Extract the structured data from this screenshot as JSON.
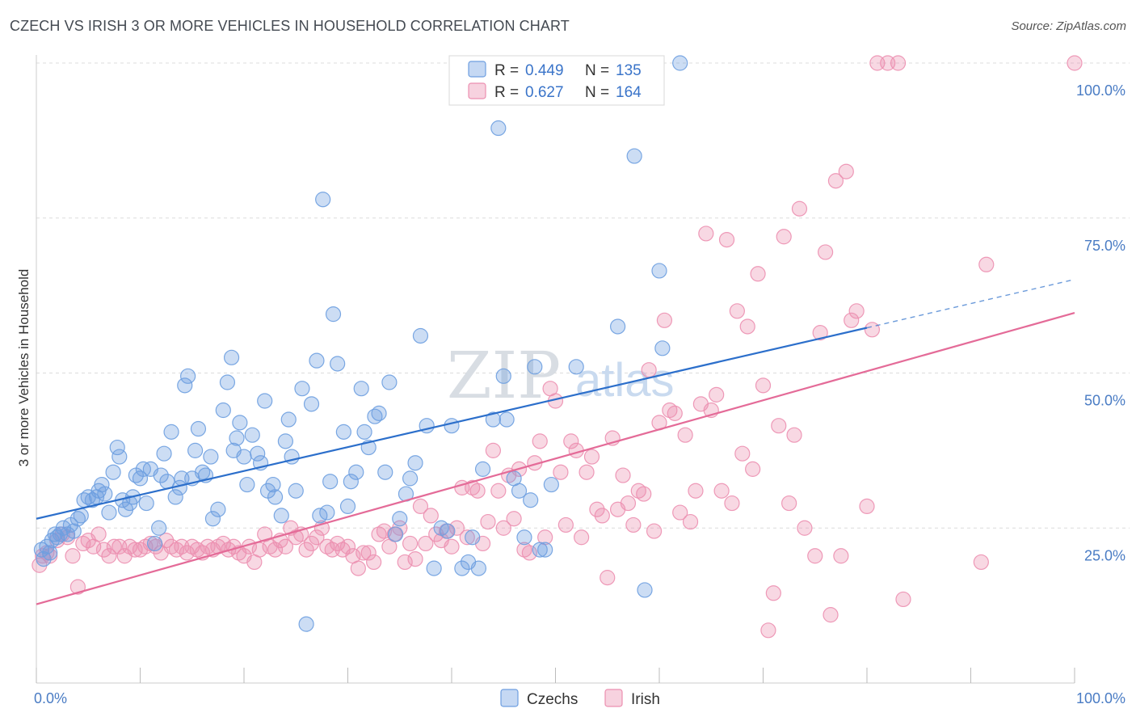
{
  "title": "CZECH VS IRISH 3 OR MORE VEHICLES IN HOUSEHOLD CORRELATION CHART",
  "source": "Source: ZipAtlas.com",
  "watermark": {
    "zip": "ZIP",
    "atlas": "atlas"
  },
  "colors": {
    "czechs": "#6d9ee0",
    "irish": "#ec8fb0",
    "czechs_line": "#2c6fcb",
    "irish_line": "#e46b98",
    "tick_text": "#4a7cc4"
  },
  "chart_data": {
    "type": "scatter",
    "ylabel": "3 or more Vehicles in Household",
    "xlim": [
      0,
      100
    ],
    "ylim": [
      0,
      100
    ],
    "x_tick_labels": [
      "0.0%",
      "100.0%"
    ],
    "y_tick_labels": [
      "25.0%",
      "50.0%",
      "75.0%",
      "100.0%"
    ],
    "y_ticks": [
      25,
      50,
      75,
      100
    ],
    "grid": true,
    "legend_top": [
      {
        "r_label": "R =",
        "r_value": "0.449",
        "n_label": "N =",
        "n_value": "135"
      },
      {
        "r_label": "R =",
        "r_value": "0.627",
        "n_label": "N =",
        "n_value": "164"
      }
    ],
    "legend_bottom": [
      "Czechs",
      "Irish"
    ],
    "series": [
      {
        "name": "Czechs",
        "trend": {
          "x0": 0,
          "y0": 26.5,
          "x1": 80,
          "y1": 57.3,
          "x_dash_end": 100,
          "y_dash_end": 65.1
        },
        "points": [
          [
            0.5,
            21.5
          ],
          [
            0.7,
            20
          ],
          [
            1,
            22
          ],
          [
            1.3,
            21
          ],
          [
            1.5,
            23
          ],
          [
            1.8,
            24
          ],
          [
            2,
            23.5
          ],
          [
            2.3,
            24
          ],
          [
            2.6,
            25
          ],
          [
            3,
            24
          ],
          [
            3.3,
            25.5
          ],
          [
            3.6,
            24.5
          ],
          [
            4,
            26.5
          ],
          [
            4.3,
            27
          ],
          [
            4.6,
            29.5
          ],
          [
            5,
            30
          ],
          [
            5.4,
            29.5
          ],
          [
            5.8,
            30
          ],
          [
            6,
            31
          ],
          [
            6.3,
            32
          ],
          [
            6.6,
            30.5
          ],
          [
            7,
            27.5
          ],
          [
            7.4,
            34
          ],
          [
            7.8,
            38
          ],
          [
            8,
            36.5
          ],
          [
            8.3,
            29.5
          ],
          [
            8.6,
            28
          ],
          [
            9,
            29
          ],
          [
            9.3,
            30
          ],
          [
            9.6,
            33.5
          ],
          [
            10,
            33
          ],
          [
            10.3,
            34.5
          ],
          [
            10.6,
            29
          ],
          [
            11,
            34.5
          ],
          [
            11.4,
            22.5
          ],
          [
            11.8,
            25
          ],
          [
            12,
            33.5
          ],
          [
            12.3,
            37
          ],
          [
            12.6,
            32.5
          ],
          [
            13,
            40.5
          ],
          [
            13.4,
            30
          ],
          [
            13.8,
            31.5
          ],
          [
            14,
            33
          ],
          [
            14.3,
            48
          ],
          [
            14.6,
            49.5
          ],
          [
            15,
            33
          ],
          [
            15.3,
            37.5
          ],
          [
            15.6,
            41
          ],
          [
            16,
            34
          ],
          [
            16.3,
            33.5
          ],
          [
            16.8,
            36.5
          ],
          [
            17,
            26.5
          ],
          [
            17.5,
            28
          ],
          [
            18,
            44
          ],
          [
            18.4,
            48.5
          ],
          [
            18.8,
            52.5
          ],
          [
            19,
            37.5
          ],
          [
            19.3,
            39.5
          ],
          [
            19.6,
            42
          ],
          [
            20,
            36.5
          ],
          [
            20.3,
            32
          ],
          [
            20.8,
            40
          ],
          [
            21.3,
            37
          ],
          [
            21.6,
            35.5
          ],
          [
            22,
            45.5
          ],
          [
            22.3,
            31
          ],
          [
            22.8,
            32
          ],
          [
            23,
            30
          ],
          [
            23.6,
            27
          ],
          [
            24,
            39
          ],
          [
            24.3,
            42.5
          ],
          [
            24.6,
            36.5
          ],
          [
            25,
            31
          ],
          [
            25.6,
            47.5
          ],
          [
            26,
            9.5
          ],
          [
            26.5,
            45
          ],
          [
            27,
            52
          ],
          [
            27.3,
            27
          ],
          [
            27.6,
            78
          ],
          [
            28,
            27.5
          ],
          [
            28.3,
            32.5
          ],
          [
            28.6,
            59.5
          ],
          [
            29,
            51.5
          ],
          [
            29.6,
            40.5
          ],
          [
            30,
            28.5
          ],
          [
            30.3,
            32.5
          ],
          [
            30.8,
            34
          ],
          [
            31.3,
            47.5
          ],
          [
            31.6,
            40.5
          ],
          [
            32,
            38
          ],
          [
            32.6,
            43
          ],
          [
            33,
            43.5
          ],
          [
            33.6,
            34
          ],
          [
            34,
            48.5
          ],
          [
            34.6,
            24
          ],
          [
            35,
            26.5
          ],
          [
            35.6,
            30.5
          ],
          [
            36,
            33
          ],
          [
            36.5,
            35.5
          ],
          [
            37,
            56
          ],
          [
            37.6,
            41.5
          ],
          [
            38.3,
            18.5
          ],
          [
            39,
            25
          ],
          [
            39.6,
            24.5
          ],
          [
            40,
            41.5
          ],
          [
            41,
            18.5
          ],
          [
            41.6,
            19.5
          ],
          [
            42,
            23.5
          ],
          [
            42.6,
            18.5
          ],
          [
            43,
            34.5
          ],
          [
            44,
            42.5
          ],
          [
            44.5,
            89.5
          ],
          [
            45,
            49.5
          ],
          [
            45.3,
            42.5
          ],
          [
            46,
            33
          ],
          [
            46.5,
            31
          ],
          [
            47,
            23.5
          ],
          [
            47.6,
            29.5
          ],
          [
            48,
            51
          ],
          [
            48.5,
            21.5
          ],
          [
            49,
            21.5
          ],
          [
            49.6,
            32
          ],
          [
            52,
            51
          ],
          [
            56,
            57.5
          ],
          [
            57.6,
            85
          ],
          [
            58.6,
            15
          ],
          [
            60,
            66.5
          ],
          [
            60.3,
            54
          ],
          [
            62,
            100
          ]
        ]
      },
      {
        "name": "Irish",
        "trend": {
          "x0": 0,
          "y0": 12.7,
          "x1": 100,
          "y1": 59.7
        },
        "points": [
          [
            0.3,
            19
          ],
          [
            0.6,
            20.5
          ],
          [
            1,
            21
          ],
          [
            1.3,
            20.5
          ],
          [
            2,
            23
          ],
          [
            2.5,
            24
          ],
          [
            3,
            23.5
          ],
          [
            3.5,
            20.5
          ],
          [
            4,
            15.5
          ],
          [
            4.5,
            22.5
          ],
          [
            5,
            23
          ],
          [
            5.5,
            22
          ],
          [
            6,
            24
          ],
          [
            6.5,
            21.5
          ],
          [
            7,
            20.5
          ],
          [
            7.5,
            22
          ],
          [
            8,
            22
          ],
          [
            8.5,
            20.5
          ],
          [
            9,
            22
          ],
          [
            9.5,
            21.5
          ],
          [
            10,
            21.5
          ],
          [
            10.5,
            22
          ],
          [
            11,
            22.5
          ],
          [
            11.5,
            22
          ],
          [
            12,
            21
          ],
          [
            12.5,
            23
          ],
          [
            13,
            22
          ],
          [
            13.5,
            21.5
          ],
          [
            14,
            22
          ],
          [
            14.5,
            21
          ],
          [
            15,
            22
          ],
          [
            15.5,
            21.5
          ],
          [
            16,
            21
          ],
          [
            16.5,
            22
          ],
          [
            17,
            21.5
          ],
          [
            17.5,
            22
          ],
          [
            18,
            22.5
          ],
          [
            18.5,
            21.5
          ],
          [
            19,
            22
          ],
          [
            19.5,
            21
          ],
          [
            20,
            20.5
          ],
          [
            20.5,
            22
          ],
          [
            21,
            19.5
          ],
          [
            21.5,
            21.5
          ],
          [
            22,
            24
          ],
          [
            22.5,
            22
          ],
          [
            23,
            21.5
          ],
          [
            23.5,
            23
          ],
          [
            24,
            22
          ],
          [
            24.5,
            25
          ],
          [
            25,
            23.5
          ],
          [
            25.5,
            24
          ],
          [
            26,
            21.5
          ],
          [
            26.5,
            22.5
          ],
          [
            27,
            23.5
          ],
          [
            27.5,
            25
          ],
          [
            28,
            22
          ],
          [
            28.5,
            21.5
          ],
          [
            29,
            22.5
          ],
          [
            29.5,
            21.5
          ],
          [
            30,
            22
          ],
          [
            30.5,
            20.5
          ],
          [
            31,
            18.5
          ],
          [
            31.5,
            21
          ],
          [
            32,
            21
          ],
          [
            32.5,
            19.5
          ],
          [
            33,
            24
          ],
          [
            33.5,
            24.5
          ],
          [
            34,
            22
          ],
          [
            34.5,
            24
          ],
          [
            35,
            25
          ],
          [
            35.5,
            19.5
          ],
          [
            36,
            22.5
          ],
          [
            36.5,
            20
          ],
          [
            37,
            28.5
          ],
          [
            37.5,
            22.5
          ],
          [
            38,
            27
          ],
          [
            38.5,
            24
          ],
          [
            39,
            23
          ],
          [
            39.5,
            24.5
          ],
          [
            40,
            22
          ],
          [
            40.5,
            25
          ],
          [
            41,
            31.5
          ],
          [
            41.5,
            23.5
          ],
          [
            42,
            31.5
          ],
          [
            42.5,
            31
          ],
          [
            43,
            22.5
          ],
          [
            43.5,
            26
          ],
          [
            44,
            37.5
          ],
          [
            44.5,
            31
          ],
          [
            45,
            25
          ],
          [
            45.5,
            33.5
          ],
          [
            46,
            26.5
          ],
          [
            46.5,
            34.5
          ],
          [
            47,
            21.5
          ],
          [
            47.5,
            21
          ],
          [
            48,
            35.5
          ],
          [
            48.5,
            39
          ],
          [
            49,
            23.5
          ],
          [
            49.5,
            47.5
          ],
          [
            50,
            45.5
          ],
          [
            50.5,
            34
          ],
          [
            51,
            25.5
          ],
          [
            51.5,
            39
          ],
          [
            52,
            37.5
          ],
          [
            52.5,
            23.5
          ],
          [
            53,
            34
          ],
          [
            53.5,
            36.5
          ],
          [
            54,
            28
          ],
          [
            54.5,
            27
          ],
          [
            55,
            17
          ],
          [
            55.5,
            39.5
          ],
          [
            56,
            28
          ],
          [
            56.5,
            33.5
          ],
          [
            57,
            29
          ],
          [
            57.5,
            25.5
          ],
          [
            58,
            31
          ],
          [
            58.5,
            30.5
          ],
          [
            59,
            50.5
          ],
          [
            59.5,
            24.5
          ],
          [
            60,
            42
          ],
          [
            60.5,
            58.5
          ],
          [
            61,
            44
          ],
          [
            61.5,
            43.5
          ],
          [
            62,
            27.5
          ],
          [
            62.5,
            40
          ],
          [
            63,
            26
          ],
          [
            63.5,
            31
          ],
          [
            64,
            45
          ],
          [
            64.5,
            72.5
          ],
          [
            65,
            44
          ],
          [
            65.5,
            46.5
          ],
          [
            66,
            31
          ],
          [
            66.5,
            71.5
          ],
          [
            67,
            29
          ],
          [
            67.5,
            60
          ],
          [
            68,
            37
          ],
          [
            68.5,
            57.5
          ],
          [
            69,
            34.5
          ],
          [
            69.5,
            66
          ],
          [
            70,
            48
          ],
          [
            70.5,
            8.5
          ],
          [
            71,
            14.5
          ],
          [
            71.5,
            41.5
          ],
          [
            72,
            72
          ],
          [
            72.5,
            29
          ],
          [
            73,
            40
          ],
          [
            73.5,
            76.5
          ],
          [
            74,
            25
          ],
          [
            75,
            20.5
          ],
          [
            75.5,
            56.5
          ],
          [
            76,
            69.5
          ],
          [
            76.5,
            11
          ],
          [
            77,
            81
          ],
          [
            77.5,
            20.5
          ],
          [
            78,
            82.5
          ],
          [
            78.5,
            58.5
          ],
          [
            79,
            60
          ],
          [
            80,
            28.5
          ],
          [
            80.5,
            57
          ],
          [
            81,
            100
          ],
          [
            82,
            100
          ],
          [
            83,
            100
          ],
          [
            83.5,
            13.5
          ],
          [
            91,
            19.5
          ],
          [
            91.5,
            67.5
          ],
          [
            100,
            100
          ]
        ]
      }
    ]
  }
}
